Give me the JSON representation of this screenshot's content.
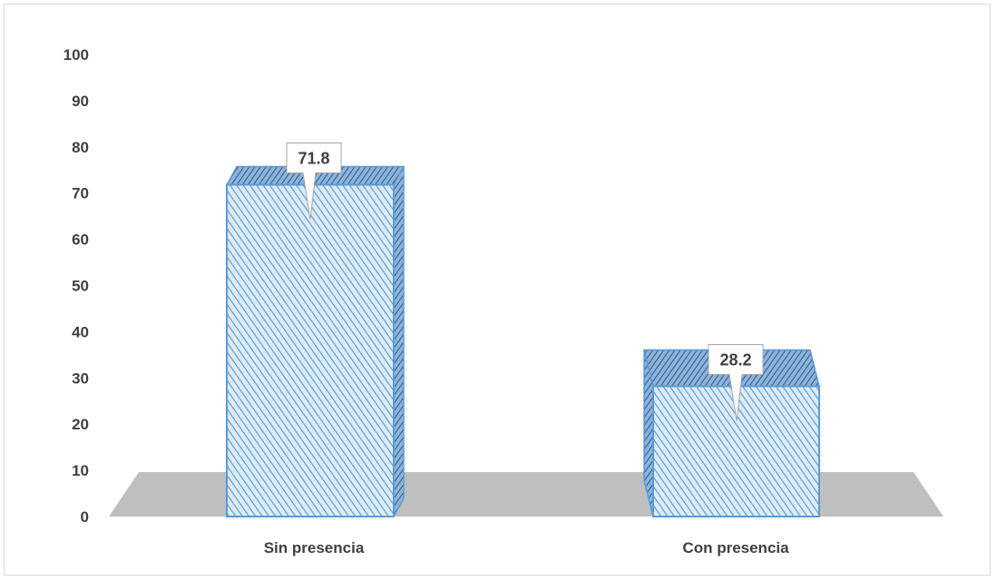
{
  "chart_data": {
    "type": "bar",
    "title": "",
    "xlabel": "",
    "ylabel": "",
    "categories": [
      "Sin presencia",
      "Con presencia"
    ],
    "values": [
      71.8,
      28.2
    ],
    "data_labels": [
      "71.8",
      "28.2"
    ],
    "yticks": [
      "0",
      "10",
      "20",
      "30",
      "40",
      "50",
      "60",
      "70",
      "80",
      "90",
      "100"
    ],
    "ylim": [
      0,
      100
    ],
    "grid": false,
    "style": "3d-column",
    "colors": {
      "bar_fill": "#ddebf7",
      "bar_hatch": "#5b9bd5",
      "bar_edge": "#5b9bd5",
      "floor": "#bfbfbf",
      "text": "#404040"
    }
  }
}
